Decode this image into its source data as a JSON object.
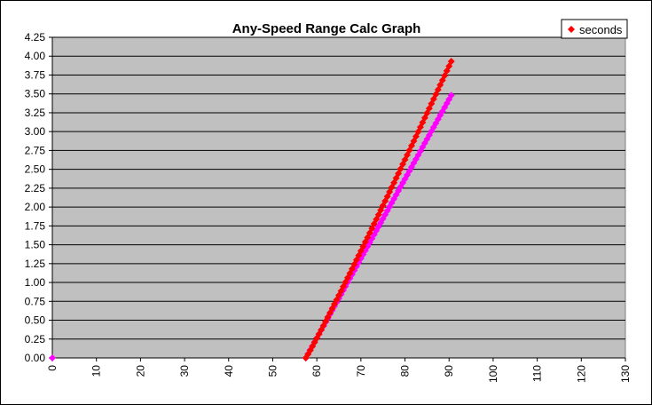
{
  "chart_data": {
    "type": "scatter",
    "title": "Any-Speed Range Calc Graph",
    "xlabel": "",
    "ylabel": "",
    "xlim": [
      0,
      130
    ],
    "ylim": [
      0,
      4.25
    ],
    "x_ticks": [
      "0",
      "10",
      "20",
      "30",
      "40",
      "50",
      "60",
      "70",
      "80",
      "90",
      "100",
      "110",
      "120",
      "130"
    ],
    "y_ticks": [
      "0.00",
      "0.25",
      "0.50",
      "0.75",
      "1.00",
      "1.25",
      "1.50",
      "1.75",
      "2.00",
      "2.25",
      "2.50",
      "2.75",
      "3.00",
      "3.25",
      "3.50",
      "3.75",
      "4.00",
      "4.25"
    ],
    "grid": true,
    "legend_position": "top-right",
    "series": [
      {
        "name": "seconds",
        "color": "#ff0000",
        "marker": "diamond",
        "in_legend": true,
        "x_start": 57.5,
        "x_end": 90.5,
        "x_step": 0.5,
        "y_start": 0.0,
        "y_end": 3.93,
        "curve_exponent": 1.05
      },
      {
        "name": "",
        "color": "#ff00ff",
        "marker": "diamond",
        "in_legend": false,
        "x_start": 57.5,
        "x_end": 90.5,
        "x_step": 0.5,
        "y_start": 0.0,
        "y_end": 3.48,
        "curve_exponent": 1.0
      }
    ],
    "extra_points": [
      {
        "x": 0,
        "y": 0,
        "color": "#ff00ff"
      }
    ]
  }
}
